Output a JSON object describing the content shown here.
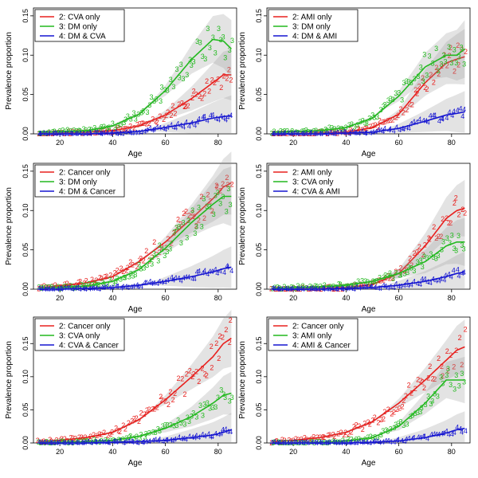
{
  "chart_data": [
    {
      "type": "scatter",
      "xlabel": "Age",
      "ylabel": "Prevalence proportion",
      "xlim": [
        10,
        87
      ],
      "ylim": [
        0,
        0.16
      ],
      "xticks": [
        "20",
        "40",
        "60",
        "80"
      ],
      "yticks": [
        "0.00",
        "0.05",
        "0.10",
        "0.15"
      ],
      "legend_position": "top-left",
      "colors": [
        "#e8201e",
        "#22b91f",
        "#1515d1"
      ],
      "series": [
        {
          "name": "2: CVA only",
          "marker": "2",
          "values": [
            0.0,
            0.001,
            0.002,
            0.004,
            0.01,
            0.024,
            0.045,
            0.065,
            0.075,
            0.075
          ]
        },
        {
          "name": "3: DM only",
          "marker": "3",
          "values": [
            0.002,
            0.003,
            0.004,
            0.01,
            0.025,
            0.055,
            0.095,
            0.12,
            0.118,
            0.108
          ]
        },
        {
          "name": "4: DM & CVA",
          "marker": "4",
          "values": [
            0.0,
            0.0,
            0.0,
            0.001,
            0.003,
            0.008,
            0.014,
            0.02,
            0.022,
            0.023
          ]
        }
      ]
    },
    {
      "type": "scatter",
      "xlabel": "Age",
      "ylabel": "Prevalence proportion",
      "xlim": [
        10,
        87
      ],
      "ylim": [
        0,
        0.16
      ],
      "xticks": [
        "20",
        "40",
        "60",
        "80"
      ],
      "yticks": [
        "0.00",
        "0.05",
        "0.10",
        "0.15"
      ],
      "legend_position": "top-left",
      "colors": [
        "#e8201e",
        "#22b91f",
        "#1515d1"
      ],
      "series": [
        {
          "name": "2: AMI only",
          "marker": "2",
          "values": [
            0.0,
            0.0,
            0.001,
            0.002,
            0.008,
            0.025,
            0.065,
            0.09,
            0.095,
            0.098
          ]
        },
        {
          "name": "3: DM only",
          "marker": "3",
          "values": [
            0.002,
            0.003,
            0.004,
            0.008,
            0.02,
            0.048,
            0.085,
            0.1,
            0.1,
            0.108
          ]
        },
        {
          "name": "4: DM & AMI",
          "marker": "4",
          "values": [
            0.0,
            0.0,
            0.0,
            0.001,
            0.002,
            0.007,
            0.016,
            0.024,
            0.026,
            0.028
          ]
        }
      ]
    },
    {
      "type": "scatter",
      "xlabel": "Age",
      "ylabel": "Prevalence proportion",
      "xlim": [
        10,
        87
      ],
      "ylim": [
        0,
        0.16
      ],
      "xticks": [
        "20",
        "40",
        "60",
        "80"
      ],
      "yticks": [
        "0.00",
        "0.05",
        "0.10",
        "0.15"
      ],
      "legend_position": "top-left",
      "colors": [
        "#e8201e",
        "#22b91f",
        "#1515d1"
      ],
      "series": [
        {
          "name": "2: Cancer only",
          "marker": "2",
          "values": [
            0.002,
            0.004,
            0.008,
            0.016,
            0.035,
            0.06,
            0.09,
            0.115,
            0.13,
            0.135
          ]
        },
        {
          "name": "3: DM only",
          "marker": "3",
          "values": [
            0.001,
            0.002,
            0.004,
            0.01,
            0.025,
            0.052,
            0.085,
            0.108,
            0.118,
            0.118
          ]
        },
        {
          "name": "4: DM & Cancer",
          "marker": "4",
          "values": [
            0.0,
            0.0,
            0.001,
            0.002,
            0.005,
            0.01,
            0.016,
            0.022,
            0.026,
            0.028
          ]
        }
      ]
    },
    {
      "type": "scatter",
      "xlabel": "Age",
      "ylabel": "Prevalence proportion",
      "xlim": [
        10,
        87
      ],
      "ylim": [
        0,
        0.16
      ],
      "xticks": [
        "20",
        "40",
        "60",
        "80"
      ],
      "yticks": [
        "0.00",
        "0.05",
        "0.10",
        "0.15"
      ],
      "legend_position": "top-left",
      "colors": [
        "#e8201e",
        "#22b91f",
        "#1515d1"
      ],
      "series": [
        {
          "name": "2: AMI only",
          "marker": "2",
          "values": [
            0.0,
            0.0,
            0.001,
            0.002,
            0.006,
            0.02,
            0.055,
            0.09,
            0.1,
            0.103
          ]
        },
        {
          "name": "3: CVA only",
          "marker": "3",
          "values": [
            0.001,
            0.002,
            0.003,
            0.005,
            0.01,
            0.02,
            0.035,
            0.055,
            0.06,
            0.06
          ]
        },
        {
          "name": "4: CVA & AMI",
          "marker": "4",
          "values": [
            0.0,
            0.0,
            0.0,
            0.001,
            0.002,
            0.005,
            0.01,
            0.016,
            0.02,
            0.022
          ]
        }
      ]
    },
    {
      "type": "scatter",
      "xlabel": "Age",
      "ylabel": "Prevalence proportion",
      "xlim": [
        10,
        87
      ],
      "ylim": [
        0,
        0.19
      ],
      "xticks": [
        "20",
        "40",
        "60",
        "80"
      ],
      "yticks": [
        "0.00",
        "0.05",
        "0.10",
        "0.15"
      ],
      "legend_position": "top-left",
      "colors": [
        "#e8201e",
        "#22b91f",
        "#1515d1"
      ],
      "series": [
        {
          "name": "2: Cancer only",
          "marker": "2",
          "values": [
            0.002,
            0.004,
            0.008,
            0.016,
            0.035,
            0.065,
            0.1,
            0.13,
            0.15,
            0.158
          ]
        },
        {
          "name": "3: CVA only",
          "marker": "3",
          "values": [
            0.0,
            0.001,
            0.002,
            0.004,
            0.01,
            0.022,
            0.04,
            0.06,
            0.072,
            0.075
          ]
        },
        {
          "name": "4: CVA & Cancer",
          "marker": "4",
          "values": [
            0.0,
            0.0,
            0.0,
            0.001,
            0.002,
            0.004,
            0.008,
            0.012,
            0.016,
            0.02
          ]
        }
      ]
    },
    {
      "type": "scatter",
      "xlabel": "Age",
      "ylabel": "Prevalence proportion",
      "xlim": [
        10,
        87
      ],
      "ylim": [
        0,
        0.19
      ],
      "xticks": [
        "20",
        "40",
        "60",
        "80"
      ],
      "yticks": [
        "0.00",
        "0.05",
        "0.10",
        "0.15"
      ],
      "legend_position": "top-left",
      "colors": [
        "#e8201e",
        "#22b91f",
        "#1515d1"
      ],
      "series": [
        {
          "name": "2: Cancer only",
          "marker": "2",
          "values": [
            0.002,
            0.004,
            0.008,
            0.016,
            0.032,
            0.06,
            0.095,
            0.125,
            0.14,
            0.145
          ]
        },
        {
          "name": "3: AMI only",
          "marker": "3",
          "values": [
            0.0,
            0.0,
            0.001,
            0.003,
            0.008,
            0.025,
            0.06,
            0.095,
            0.095,
            0.095
          ]
        },
        {
          "name": "4: AMI & Cancer",
          "marker": "4",
          "values": [
            0.0,
            0.0,
            0.0,
            0.0,
            0.001,
            0.003,
            0.008,
            0.015,
            0.02,
            0.022
          ]
        }
      ]
    }
  ]
}
